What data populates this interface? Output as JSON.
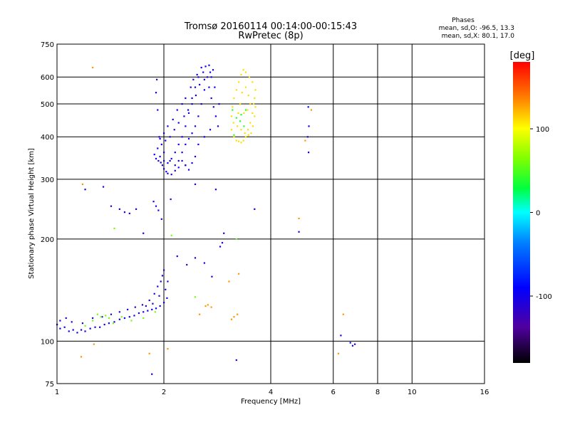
{
  "chart_data": {
    "type": "scatter",
    "title": "Tromsø 20160114 00:14:00-00:15:43",
    "subtitle": "RwPretec (8p)",
    "xlabel": "Frequency [MHz]",
    "ylabel": "Stationary phase Virtual Height [km]",
    "xscale": "log",
    "yscale": "log",
    "xlim": [
      1,
      16
    ],
    "ylim": [
      75,
      750
    ],
    "xticks": [
      1,
      2,
      4,
      6,
      8,
      10,
      16
    ],
    "xtick_labels": [
      "1",
      "2",
      "4",
      "6",
      "8",
      "10",
      "16"
    ],
    "yticks": [
      75,
      100,
      200,
      300,
      400,
      500,
      600,
      750
    ],
    "ytick_labels": [
      "75",
      "100",
      "200",
      "300",
      "400",
      "500",
      "600",
      "750"
    ],
    "grid": true,
    "stats": {
      "heading": "Phases",
      "line1": "mean, sd,O: -96.5, 13.3",
      "line2": "mean, sd,X: 80.1, 17.0"
    },
    "colorbar": {
      "label": "[deg]",
      "range": [
        -180,
        180
      ],
      "ticks": [
        -100,
        0,
        100
      ],
      "tick_labels": [
        "-100",
        "0",
        "100"
      ]
    },
    "clusters": [
      {
        "name_hint": "E-layer trace",
        "phase": -100,
        "points": [
          [
            1.0,
            112
          ],
          [
            1.02,
            109
          ],
          [
            1.05,
            110
          ],
          [
            1.08,
            107
          ],
          [
            1.11,
            108
          ],
          [
            1.14,
            106
          ],
          [
            1.17,
            108
          ],
          [
            1.2,
            107
          ],
          [
            1.24,
            109
          ],
          [
            1.28,
            110
          ],
          [
            1.32,
            110
          ],
          [
            1.36,
            112
          ],
          [
            1.4,
            113
          ],
          [
            1.45,
            114
          ],
          [
            1.5,
            116
          ],
          [
            1.55,
            117
          ],
          [
            1.6,
            118
          ],
          [
            1.65,
            119
          ],
          [
            1.7,
            121
          ],
          [
            1.75,
            122
          ],
          [
            1.8,
            123
          ],
          [
            1.85,
            124
          ],
          [
            1.9,
            125
          ],
          [
            1.95,
            127
          ],
          [
            2.0,
            130
          ],
          [
            2.04,
            134
          ]
        ]
      },
      {
        "name_hint": "E-layer scatter",
        "phase": -110,
        "points": [
          [
            1.02,
            115
          ],
          [
            1.06,
            117
          ],
          [
            1.1,
            114
          ],
          [
            1.18,
            113
          ],
          [
            1.26,
            117
          ],
          [
            1.34,
            118
          ],
          [
            1.42,
            120
          ],
          [
            1.5,
            122
          ],
          [
            1.58,
            124
          ],
          [
            1.66,
            126
          ],
          [
            1.74,
            128
          ],
          [
            1.82,
            132
          ],
          [
            1.88,
            138
          ],
          [
            1.92,
            145
          ],
          [
            1.96,
            150
          ],
          [
            1.98,
            156
          ],
          [
            2.0,
            162
          ],
          [
            2.02,
            142
          ],
          [
            2.05,
            150
          ],
          [
            1.94,
            136
          ],
          [
            1.86,
            129
          ],
          [
            1.78,
            127
          ]
        ]
      },
      {
        "name_hint": "E-layer mixed",
        "phase": 60,
        "points": [
          [
            1.2,
            111
          ],
          [
            1.26,
            115
          ],
          [
            1.33,
            118
          ],
          [
            1.37,
            119
          ],
          [
            1.44,
            113
          ],
          [
            1.52,
            118
          ],
          [
            1.62,
            115
          ],
          [
            1.75,
            117
          ],
          [
            1.89,
            122
          ],
          [
            1.3,
            120
          ],
          [
            1.4,
            117
          ]
        ]
      },
      {
        "name_hint": "Sporadic low",
        "phase": 130,
        "points": [
          [
            1.27,
            98
          ],
          [
            1.82,
            92
          ],
          [
            1.17,
            90
          ],
          [
            2.05,
            95
          ],
          [
            2.52,
            120
          ],
          [
            2.66,
            128
          ],
          [
            2.72,
            126
          ],
          [
            2.62,
            127
          ],
          [
            3.15,
            118
          ],
          [
            3.22,
            120
          ],
          [
            3.1,
            116
          ],
          [
            3.25,
            158
          ],
          [
            3.05,
            150
          ]
        ]
      },
      {
        "name_hint": "Intermediate",
        "phase": -105,
        "points": [
          [
            1.2,
            280
          ],
          [
            1.35,
            285
          ],
          [
            1.42,
            250
          ],
          [
            1.5,
            245
          ],
          [
            1.55,
            240
          ],
          [
            1.6,
            238
          ],
          [
            1.67,
            245
          ],
          [
            1.75,
            208
          ],
          [
            1.87,
            258
          ],
          [
            1.9,
            250
          ],
          [
            1.93,
            243
          ],
          [
            1.97,
            229
          ],
          [
            2.3,
            330
          ],
          [
            2.45,
            290
          ],
          [
            2.8,
            280
          ],
          [
            2.95,
            208
          ],
          [
            2.88,
            190
          ],
          [
            2.45,
            176
          ],
          [
            2.32,
            168
          ],
          [
            2.73,
            155
          ],
          [
            2.18,
            178
          ],
          [
            2.09,
            262
          ],
          [
            2.6,
            170
          ],
          [
            2.92,
            195
          ]
        ]
      },
      {
        "name_hint": "F-layer O-mode",
        "phase": -100,
        "points": [
          [
            1.88,
            355
          ],
          [
            1.9,
            345
          ],
          [
            1.93,
            340
          ],
          [
            1.96,
            336
          ],
          [
            1.98,
            330
          ],
          [
            2.0,
            322
          ],
          [
            2.03,
            316
          ],
          [
            2.05,
            312
          ],
          [
            2.1,
            310
          ],
          [
            2.15,
            318
          ],
          [
            2.2,
            340
          ],
          [
            2.25,
            360
          ],
          [
            2.3,
            380
          ],
          [
            2.35,
            395
          ],
          [
            2.4,
            410
          ],
          [
            2.45,
            430
          ],
          [
            2.5,
            460
          ],
          [
            2.55,
            500
          ],
          [
            2.6,
            550
          ],
          [
            2.65,
            600
          ],
          [
            2.7,
            620
          ],
          [
            2.75,
            630
          ],
          [
            2.55,
            640
          ],
          [
            2.5,
            600
          ],
          [
            2.45,
            560
          ],
          [
            2.4,
            520
          ],
          [
            2.35,
            470
          ],
          [
            2.3,
            430
          ],
          [
            2.25,
            400
          ],
          [
            2.2,
            380
          ],
          [
            2.15,
            360
          ],
          [
            2.1,
            345
          ],
          [
            2.05,
            335
          ],
          [
            2.0,
            340
          ],
          [
            1.95,
            350
          ],
          [
            1.92,
            370
          ],
          [
            1.95,
            395
          ],
          [
            2.0,
            410
          ],
          [
            2.05,
            430
          ],
          [
            2.12,
            450
          ],
          [
            2.18,
            480
          ],
          [
            2.25,
            500
          ],
          [
            2.3,
            520
          ],
          [
            2.38,
            560
          ],
          [
            2.42,
            590
          ],
          [
            2.48,
            610
          ],
          [
            2.6,
            590
          ],
          [
            2.68,
            560
          ],
          [
            2.72,
            520
          ],
          [
            2.76,
            490
          ],
          [
            2.8,
            460
          ],
          [
            2.84,
            430
          ],
          [
            2.7,
            420
          ],
          [
            2.6,
            400
          ],
          [
            2.5,
            380
          ],
          [
            2.45,
            350
          ],
          [
            2.4,
            335
          ],
          [
            2.35,
            320
          ],
          [
            2.3,
            330
          ],
          [
            2.25,
            340
          ],
          [
            2.2,
            325
          ],
          [
            2.15,
            330
          ],
          [
            2.08,
            340
          ],
          [
            2.0,
            360
          ],
          [
            1.97,
            380
          ],
          [
            1.94,
            400
          ],
          [
            2.02,
            390
          ],
          [
            2.08,
            400
          ],
          [
            2.14,
            420
          ],
          [
            2.2,
            440
          ],
          [
            2.28,
            460
          ],
          [
            2.34,
            480
          ],
          [
            2.4,
            500
          ],
          [
            2.46,
            530
          ],
          [
            2.52,
            570
          ],
          [
            2.58,
            620
          ],
          [
            2.62,
            645
          ],
          [
            2.68,
            650
          ],
          [
            2.72,
            600
          ],
          [
            2.78,
            560
          ],
          [
            2.86,
            500
          ],
          [
            1.92,
            480
          ],
          [
            1.9,
            540
          ],
          [
            1.91,
            590
          ]
        ]
      },
      {
        "name_hint": "F-layer X-mode",
        "phase": 110,
        "points": [
          [
            3.1,
            420
          ],
          [
            3.15,
            400
          ],
          [
            3.2,
            390
          ],
          [
            3.25,
            388
          ],
          [
            3.3,
            385
          ],
          [
            3.35,
            390
          ],
          [
            3.4,
            400
          ],
          [
            3.45,
            420
          ],
          [
            3.5,
            440
          ],
          [
            3.55,
            470
          ],
          [
            3.58,
            500
          ],
          [
            3.6,
            520
          ],
          [
            3.62,
            550
          ],
          [
            3.55,
            580
          ],
          [
            3.48,
            600
          ],
          [
            3.4,
            620
          ],
          [
            3.35,
            630
          ],
          [
            3.3,
            610
          ],
          [
            3.25,
            580
          ],
          [
            3.2,
            550
          ],
          [
            3.15,
            520
          ],
          [
            3.12,
            490
          ],
          [
            3.1,
            460
          ],
          [
            3.14,
            440
          ],
          [
            3.22,
            430
          ],
          [
            3.3,
            420
          ],
          [
            3.38,
            410
          ],
          [
            3.46,
            405
          ],
          [
            3.52,
            410
          ],
          [
            3.56,
            430
          ],
          [
            3.6,
            460
          ],
          [
            3.62,
            490
          ],
          [
            3.4,
            560
          ],
          [
            3.32,
            540
          ],
          [
            3.28,
            500
          ],
          [
            3.24,
            470
          ],
          [
            3.36,
            470
          ],
          [
            3.44,
            480
          ],
          [
            3.5,
            500
          ],
          [
            3.46,
            530
          ]
        ]
      },
      {
        "name_hint": "X-mode mixed",
        "phase": 40,
        "points": [
          [
            3.12,
            480
          ],
          [
            3.2,
            455
          ],
          [
            3.28,
            445
          ],
          [
            3.36,
            430
          ],
          [
            3.15,
            405
          ],
          [
            3.4,
            480
          ],
          [
            3.3,
            465
          ]
        ]
      },
      {
        "name_hint": "Sparse",
        "phase": -100,
        "points": [
          [
            5.1,
            490
          ],
          [
            5.12,
            430
          ],
          [
            5.08,
            400
          ],
          [
            5.11,
            360
          ],
          [
            6.3,
            104
          ],
          [
            6.7,
            99
          ],
          [
            6.9,
            98
          ],
          [
            6.8,
            97
          ],
          [
            1.85,
            80
          ],
          [
            3.2,
            88
          ],
          [
            4.8,
            210
          ],
          [
            3.6,
            245
          ]
        ]
      },
      {
        "name_hint": "Sparse warm",
        "phase": 130,
        "points": [
          [
            5.2,
            480
          ],
          [
            5.0,
            390
          ],
          [
            1.26,
            640
          ],
          [
            1.18,
            290
          ],
          [
            4.8,
            230
          ],
          [
            6.2,
            92
          ],
          [
            6.4,
            120
          ]
        ]
      },
      {
        "name_hint": "Sparse X",
        "phase": 60,
        "points": [
          [
            3.2,
            200
          ],
          [
            2.1,
            205
          ],
          [
            2.45,
            135
          ],
          [
            1.45,
            215
          ]
        ]
      }
    ]
  }
}
